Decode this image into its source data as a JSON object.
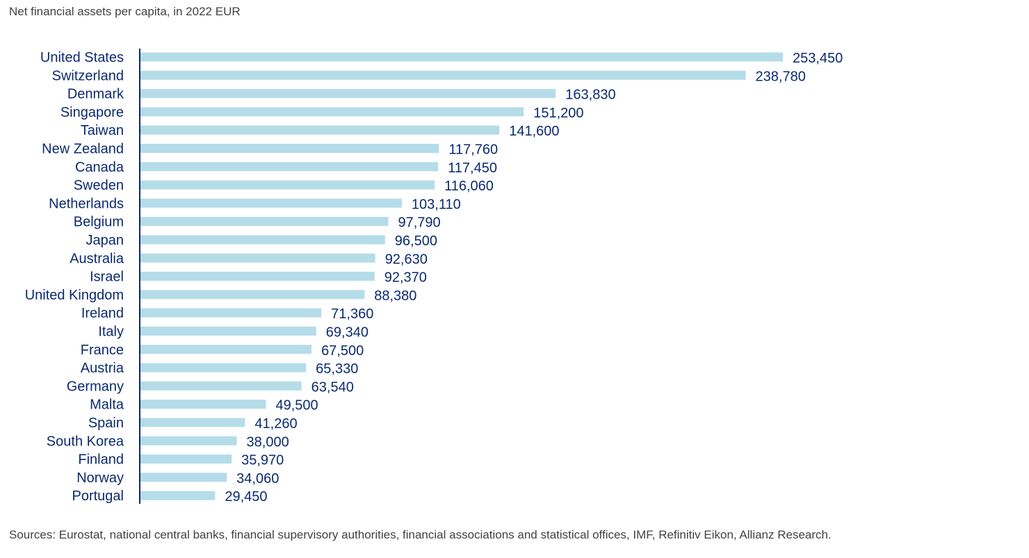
{
  "chart_data": {
    "type": "bar",
    "orientation": "horizontal",
    "title": "",
    "subtitle": "Net financial assets per capita, in 2022 EUR",
    "source": "Sources: Eurostat, national central banks, financial supervisory authorities, financial associations and statistical offices, IMF, Refinitiv Eikon, Allianz Research.",
    "categories": [
      "United States",
      "Switzerland",
      "Denmark",
      "Singapore",
      "Taiwan",
      "New Zealand",
      "Canada",
      "Sweden",
      "Netherlands",
      "Belgium",
      "Japan",
      "Australia",
      "Israel",
      "United Kingdom",
      "Ireland",
      "Italy",
      "France",
      "Austria",
      "Germany",
      "Malta",
      "Spain",
      "South Korea",
      "Finland",
      "Norway",
      "Portugal"
    ],
    "values": [
      253450,
      238780,
      163830,
      151200,
      141600,
      117760,
      117450,
      116060,
      103110,
      97790,
      96500,
      92630,
      92370,
      88380,
      71360,
      69340,
      67500,
      65330,
      63540,
      49500,
      41260,
      38000,
      35970,
      34060,
      29450
    ],
    "value_labels": [
      "253,450",
      "238,780",
      "163,830",
      "151,200",
      "141,600",
      "117,760",
      "117,450",
      "116,060",
      "103,110",
      "97,790",
      "96,500",
      "92,630",
      "92,370",
      "88,380",
      "71,360",
      "69,340",
      "67,500",
      "65,330",
      "63,540",
      "49,500",
      "41,260",
      "38,000",
      "35,970",
      "34,060",
      "29,450"
    ],
    "xlim": [
      0,
      253450
    ],
    "grid": false,
    "legend": "none",
    "colors": {
      "bar": "#b5dce9",
      "axis": "#0b2a6f",
      "text": "#0b2a6f"
    }
  }
}
